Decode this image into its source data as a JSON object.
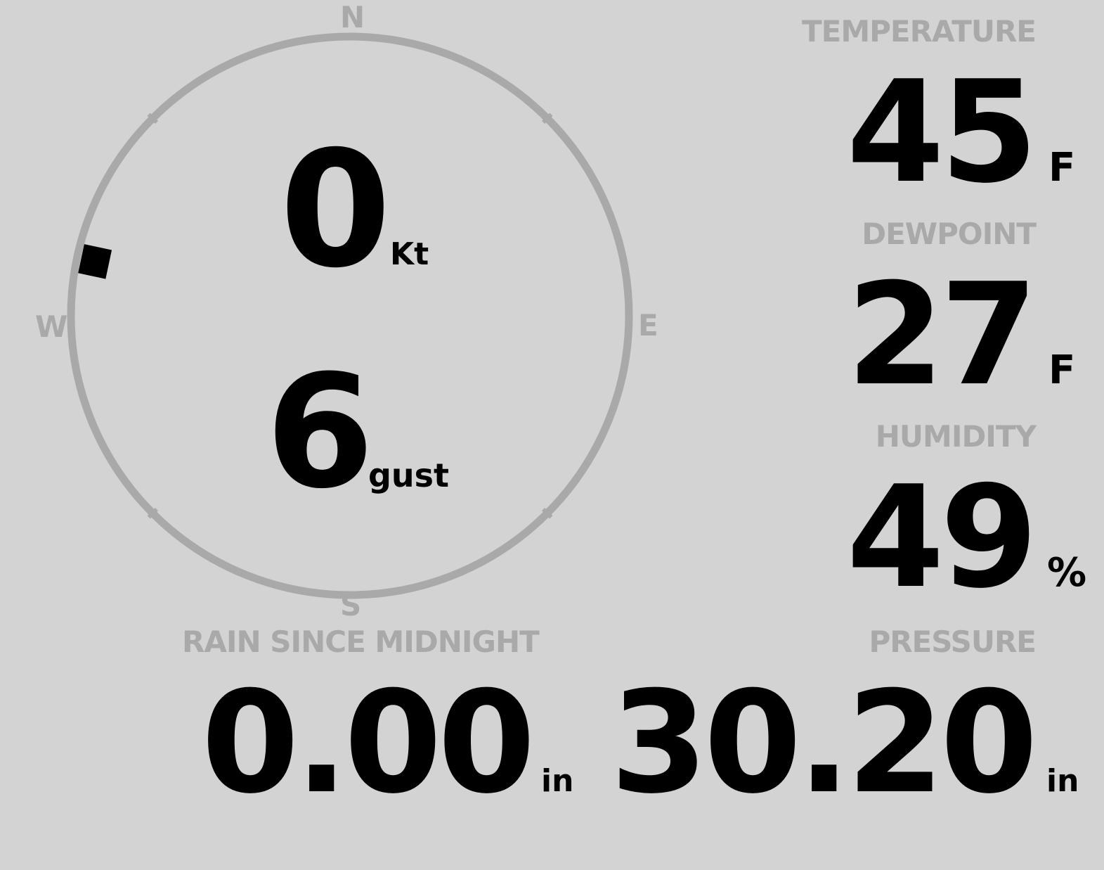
{
  "wind": {
    "speed": "0",
    "speed_unit": "Kt",
    "gust": "6",
    "gust_unit": "gust",
    "direction_deg": 282,
    "cardinals": {
      "n": "N",
      "e": "E",
      "s": "S",
      "w": "W"
    }
  },
  "temperature": {
    "label": "TEMPERATURE",
    "value": "45",
    "unit": "F"
  },
  "dewpoint": {
    "label": "DEWPOINT",
    "value": "27",
    "unit": "F"
  },
  "humidity": {
    "label": "HUMIDITY",
    "value": "49",
    "unit": "%"
  },
  "rain": {
    "label": "RAIN SINCE MIDNIGHT",
    "value": "0.00",
    "unit": "in"
  },
  "pressure": {
    "label": "PRESSURE",
    "value": "30.20",
    "unit": "in"
  },
  "colors": {
    "background": "#d3d3d3",
    "dial": "#a9a9a9",
    "label": "#a9a9a9",
    "value": "#000000"
  }
}
